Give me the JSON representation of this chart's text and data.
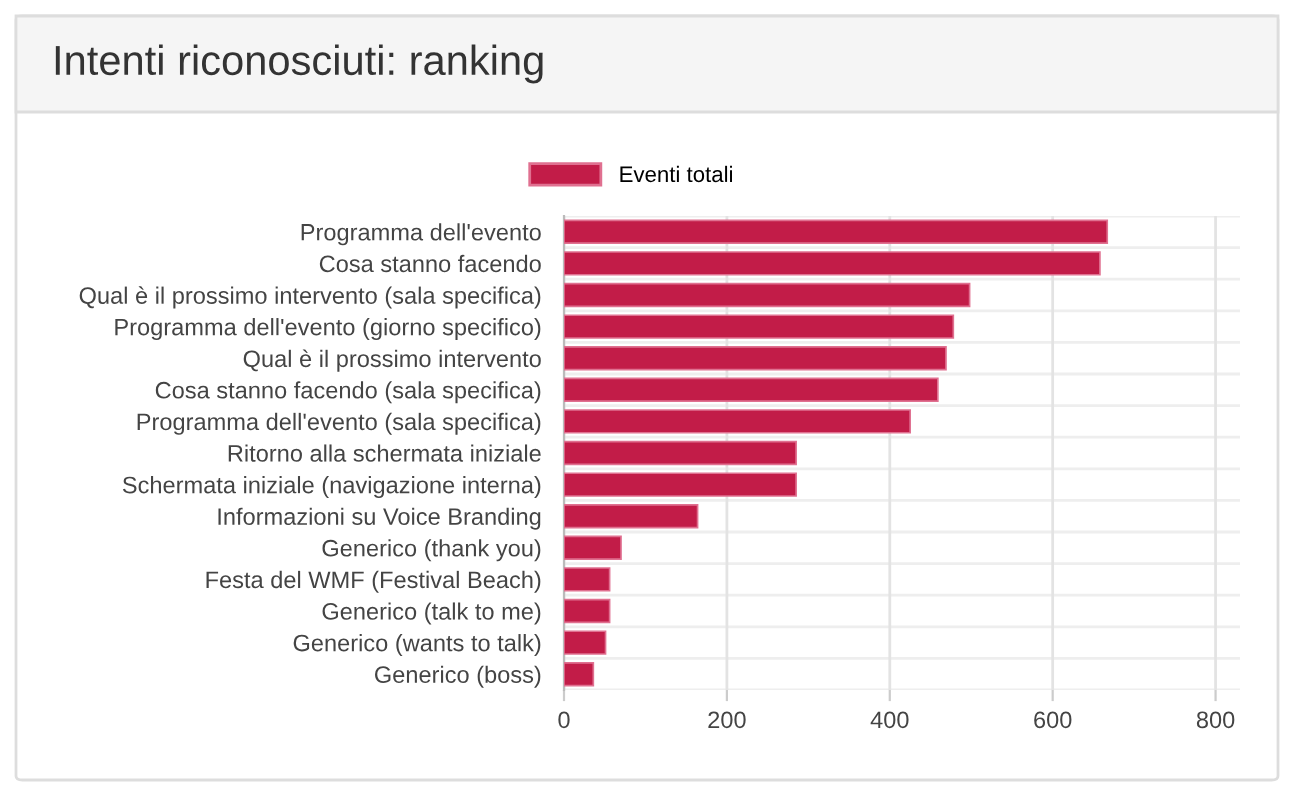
{
  "chart_data": {
    "type": "bar",
    "orientation": "horizontal",
    "title": "Intenti riconosciuti: ranking",
    "categories": [
      "Programma dell'evento",
      "Cosa stanno facendo",
      "Qual è il prossimo intervento (sala specifica)",
      "Programma dell'evento (giorno specifico)",
      "Qual è il prossimo intervento",
      "Cosa stanno facendo (sala specifica)",
      "Programma dell'evento (sala specifica)",
      "Ritorno alla schermata iniziale",
      "Schermata iniziale (navigazione interna)",
      "Informazioni su Voice Branding",
      "Generico (thank you)",
      "Festa del WMF (Festival Beach)",
      "Generico (talk to me)",
      "Generico (wants to talk)",
      "Generico (boss)"
    ],
    "series": [
      {
        "name": "Eventi totali",
        "color": "#c21c48",
        "values": [
          667,
          658,
          498,
          478,
          469,
          459,
          425,
          285,
          285,
          164,
          70,
          56,
          56,
          51,
          36
        ]
      }
    ],
    "xlim": [
      0,
      830
    ],
    "xticks": [
      0,
      200,
      400,
      600,
      800
    ],
    "grid": true,
    "legend": "top"
  }
}
